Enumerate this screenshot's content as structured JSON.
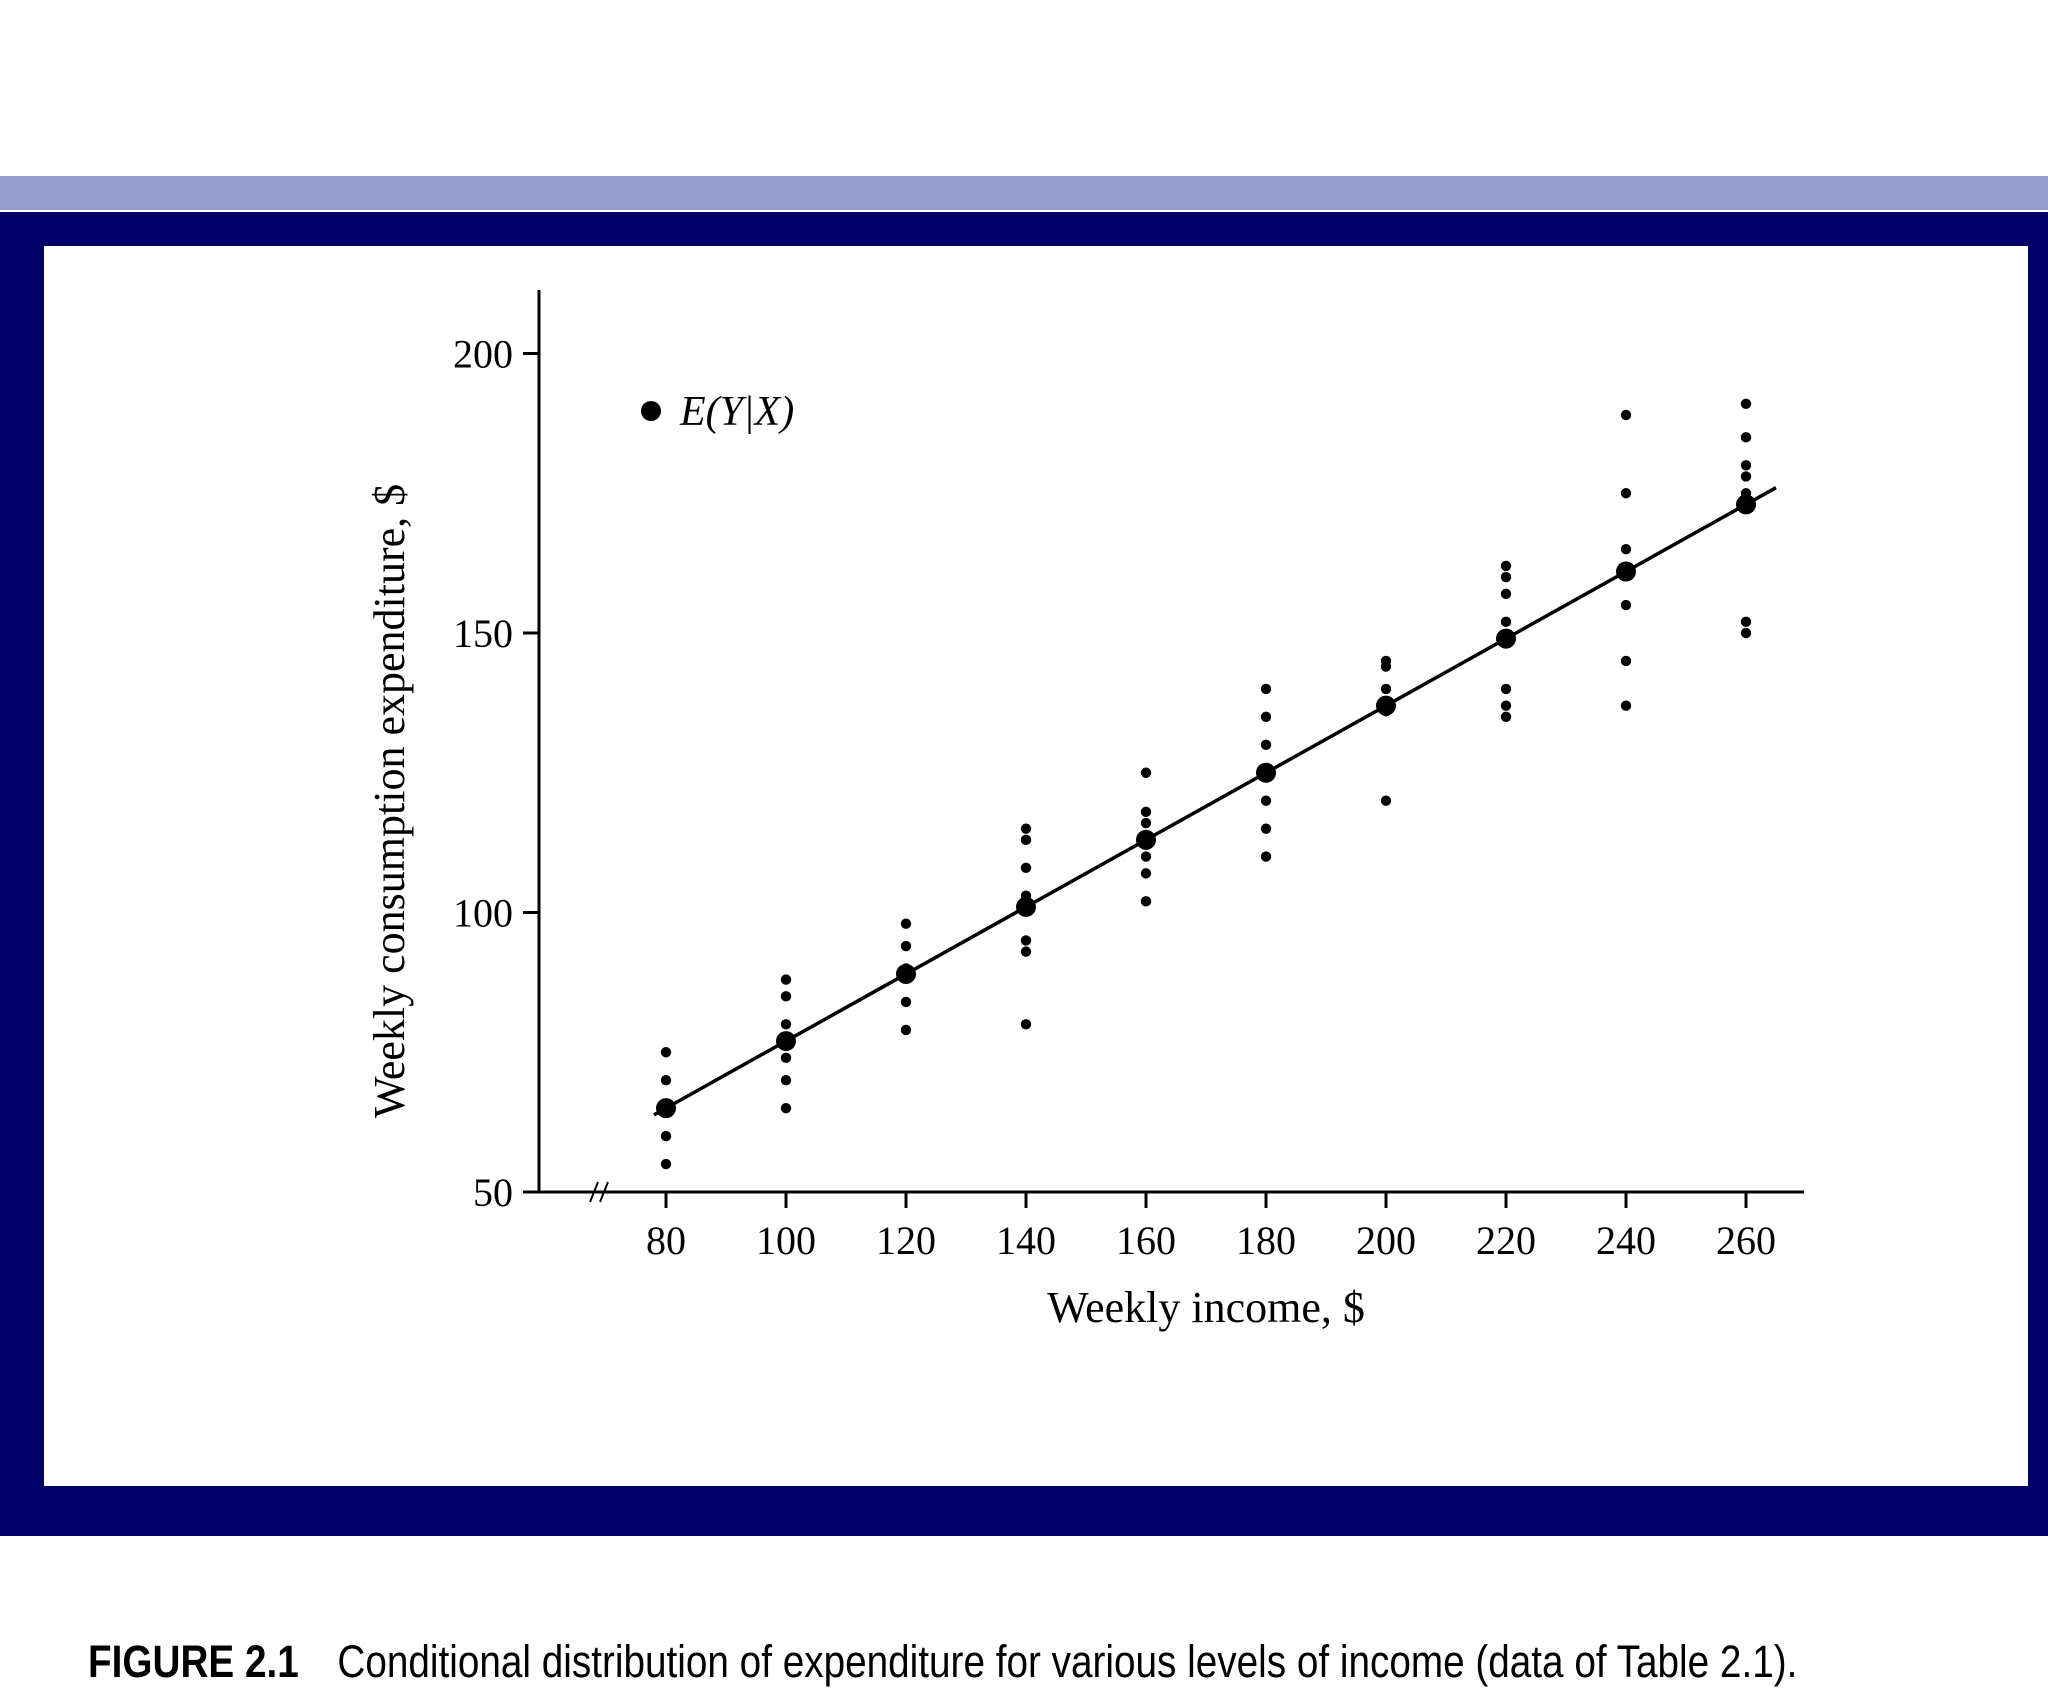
{
  "chart_data": {
    "type": "scatter",
    "title": "",
    "xlabel": "Weekly income, $",
    "ylabel": "Weekly consumption expenditure, $",
    "xlim": [
      66,
      270
    ],
    "ylim": [
      50,
      210
    ],
    "x_ticks": [
      80,
      100,
      120,
      140,
      160,
      180,
      200,
      220,
      240,
      260
    ],
    "x_tick_labels": [
      "80",
      "100",
      "120",
      "140",
      "160",
      "180",
      "200",
      "220",
      "240",
      "260"
    ],
    "y_ticks": [
      50,
      100,
      150,
      200
    ],
    "y_tick_labels": [
      "50",
      "100",
      "150",
      "200"
    ],
    "axis_break": true,
    "legend": {
      "label": "E(Y|X)",
      "position": "top-left"
    },
    "series": [
      {
        "name": "Conditional observations",
        "groups": [
          {
            "x": 80,
            "y": [
              55,
              60,
              65,
              70,
              75
            ]
          },
          {
            "x": 100,
            "y": [
              65,
              70,
              74,
              80,
              85,
              88
            ]
          },
          {
            "x": 120,
            "y": [
              79,
              84,
              90,
              94,
              98
            ]
          },
          {
            "x": 140,
            "y": [
              80,
              93,
              95,
              103,
              108,
              113,
              115
            ]
          },
          {
            "x": 160,
            "y": [
              102,
              107,
              110,
              116,
              118,
              125
            ]
          },
          {
            "x": 180,
            "y": [
              110,
              115,
              120,
              130,
              135,
              140
            ]
          },
          {
            "x": 200,
            "y": [
              120,
              136,
              140,
              144,
              145
            ]
          },
          {
            "x": 220,
            "y": [
              135,
              137,
              140,
              152,
              157,
              160,
              162
            ]
          },
          {
            "x": 240,
            "y": [
              137,
              145,
              155,
              165,
              175,
              189
            ]
          },
          {
            "x": 260,
            "y": [
              150,
              152,
              175,
              178,
              180,
              185,
              191
            ]
          }
        ]
      },
      {
        "name": "E(Y|X)",
        "x": [
          80,
          100,
          120,
          140,
          160,
          180,
          200,
          220,
          240,
          260
        ],
        "y": [
          65,
          77,
          89,
          101,
          113,
          125,
          137,
          149,
          161,
          173
        ]
      }
    ],
    "regression_line": {
      "x": [
        78,
        265
      ],
      "y": [
        63.8,
        176
      ]
    }
  },
  "caption": {
    "label": "FIGURE 2.1",
    "text": "Conditional distribution of expenditure for various levels of income (data of Table 2.1)."
  },
  "colors": {
    "band": "#969ccb",
    "frame": "#000066",
    "panel": "#ffffff",
    "ink": "#000000"
  }
}
